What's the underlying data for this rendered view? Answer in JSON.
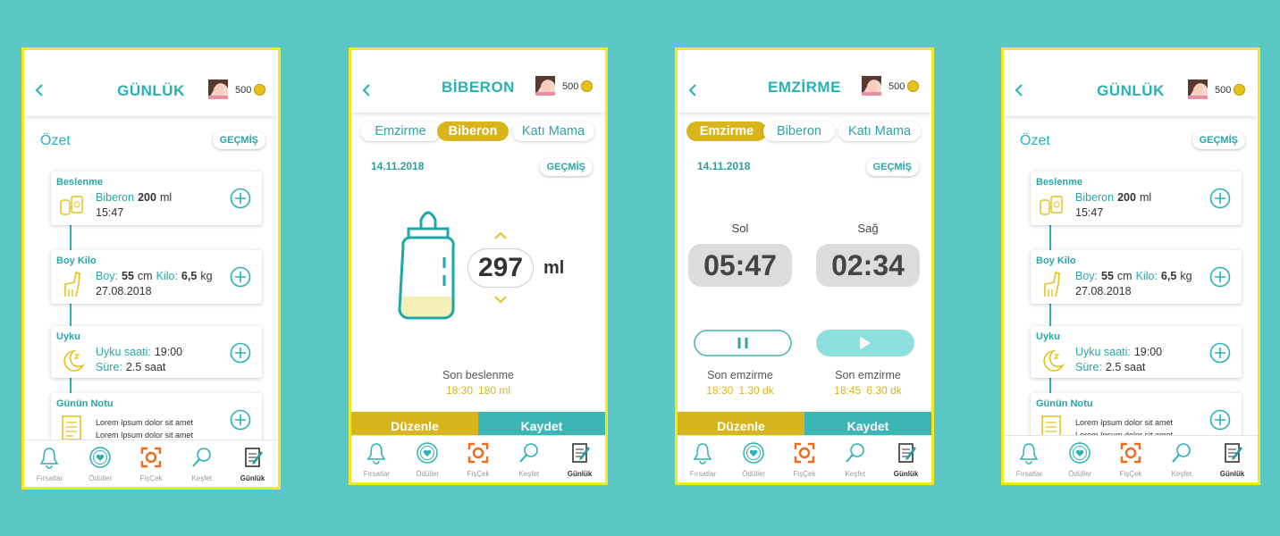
{
  "screens": [
    {
      "header": {
        "title": "GÜNLÜK",
        "coins": "500"
      },
      "summary_title": "Özet",
      "history_button": "GEÇMİŞ",
      "entries": [
        {
          "title": "Beslenme",
          "line1": [
            "Biberon",
            "200",
            "ml"
          ],
          "line2": [
            "15:47"
          ]
        },
        {
          "title": "Boy Kilo",
          "line1": [
            "Boy:",
            "55",
            "cm",
            "Kilo:",
            "6,5",
            "kg"
          ],
          "line2": [
            "27.08.2018"
          ]
        },
        {
          "title": "Uyku",
          "line1": [
            "Uyku saati:",
            "19:00"
          ],
          "line2": [
            "Süre:",
            "2.5 saat"
          ]
        },
        {
          "title": "Günün Notu",
          "line1": [
            "Lorem Ipsum dolor sit amet"
          ],
          "line2": [
            "Lorem Ipsum dolor sit amet"
          ]
        }
      ],
      "nav": [
        "Fırsatlar",
        "Ödüller",
        "FişÇek",
        "Keşfet",
        "Günlük"
      ]
    },
    {
      "header": {
        "title": "BİBERON",
        "coins": "500"
      },
      "tabs": [
        "Emzirme",
        "Biberon",
        "Katı Mama"
      ],
      "active_tab": 1,
      "date": "14.11.2018",
      "history_button": "GEÇMİŞ",
      "amount": "297",
      "unit": "ml",
      "last_label": "Son beslenme",
      "last_value": [
        "18:30",
        "180 ml"
      ],
      "actions": [
        "Düzenle",
        "Kaydet"
      ],
      "nav": [
        "Fırsatlar",
        "Ödüller",
        "FişÇek",
        "Keşfet",
        "Günlük"
      ]
    },
    {
      "header": {
        "title": "EMZİRME",
        "coins": "500"
      },
      "tabs": [
        "Emzirme",
        "Biberon",
        "Katı Mama"
      ],
      "active_tab": 0,
      "date": "14.11.2018",
      "history_button": "GEÇMİŞ",
      "timers": [
        {
          "label": "Sol",
          "time": "05:47",
          "last_label": "Son emzirme",
          "last_value": [
            "18:30",
            "1.30 dk"
          ]
        },
        {
          "label": "Sağ",
          "time": "02:34",
          "last_label": "Son emzirme",
          "last_value": [
            "18:45",
            "6.30 dk"
          ]
        }
      ],
      "actions": [
        "Düzenle",
        "Kaydet"
      ],
      "nav": [
        "Fırsatlar",
        "Ödüller",
        "FişÇek",
        "Keşfet",
        "Günlük"
      ]
    },
    {
      "header": {
        "title": "GÜNLÜK",
        "coins": "500"
      },
      "summary_title": "Özet",
      "history_button": "GEÇMİŞ",
      "entries": [
        {
          "title": "Beslenme",
          "line1": [
            "Biberon",
            "200",
            "ml"
          ],
          "line2": [
            "15:47"
          ]
        },
        {
          "title": "Boy Kilo",
          "line1": [
            "Boy:",
            "55",
            "cm",
            "Kilo:",
            "6,5",
            "kg"
          ],
          "line2": [
            "27.08.2018"
          ]
        },
        {
          "title": "Uyku",
          "line1": [
            "Uyku saati:",
            "19:00"
          ],
          "line2": [
            "Süre:",
            "2.5 saat"
          ]
        },
        {
          "title": "Günün Notu",
          "line1": [
            "Lorem Ipsum dolor sit amet"
          ],
          "line2": [
            "Lorem Ipsum dolor sit amet"
          ]
        }
      ],
      "nav": [
        "Fırsatlar",
        "Ödüller",
        "FişÇek",
        "Keşfet",
        "Günlük"
      ]
    }
  ]
}
